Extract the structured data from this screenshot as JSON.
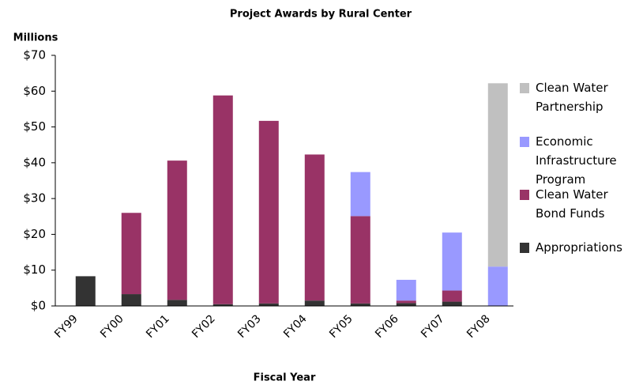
{
  "chart_data": {
    "type": "stacked_bar",
    "title": "Project Awards by Rural Center",
    "y_axis_label": "Millions",
    "x_axis_label": "Fiscal Year",
    "categories": [
      "FY99",
      "FY00",
      "FY01",
      "FY02",
      "FY03",
      "FY04",
      "FY05",
      "FY06",
      "FY07",
      "FY08"
    ],
    "series": [
      {
        "name": "Appropriations",
        "color": "#333333",
        "values": [
          8.3,
          3.3,
          1.7,
          0.5,
          0.7,
          1.5,
          0.7,
          0.8,
          1.2,
          0
        ]
      },
      {
        "name": "Clean Water Bond Funds",
        "color": "#993366",
        "values": [
          0,
          22.7,
          38.9,
          58.3,
          51.0,
          40.8,
          24.4,
          0.7,
          3.1,
          0
        ]
      },
      {
        "name": "Economic Infrastructure Program",
        "color": "#9999ff",
        "values": [
          0,
          0,
          0,
          0,
          0,
          0,
          12.3,
          5.8,
          16.2,
          11.0
        ]
      },
      {
        "name": "Clean Water Partnership",
        "color": "#c0c0c0",
        "values": [
          0,
          0,
          0,
          0,
          0,
          0,
          0,
          0,
          0,
          51.2
        ]
      }
    ],
    "ylim": [
      0,
      70
    ],
    "yticks": [
      {
        "value": 0,
        "label": "$0"
      },
      {
        "value": 10,
        "label": "$10"
      },
      {
        "value": 20,
        "label": "$20"
      },
      {
        "value": 30,
        "label": "$30"
      },
      {
        "value": 40,
        "label": "$40"
      },
      {
        "value": 50,
        "label": "$50"
      },
      {
        "value": 60,
        "label": "$60"
      },
      {
        "value": 70,
        "label": "$70"
      }
    ],
    "legend": "right"
  }
}
